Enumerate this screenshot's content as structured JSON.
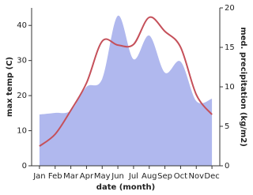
{
  "chart_data": {
    "type": "area-line",
    "x_label": "date (month)",
    "y_label": "max temp (C)",
    "y2_label": "med. precipitation (kg/m2)",
    "categories": [
      "Jan",
      "Feb",
      "Mar",
      "Apr",
      "May",
      "Jun",
      "Jul",
      "Aug",
      "Sep",
      "Oct",
      "Nov",
      "Dec"
    ],
    "series": [
      {
        "name": "med. precipitation",
        "type": "area",
        "axis": "y2",
        "color": "#b0b8ee",
        "values": [
          6.5,
          6.7,
          7,
          10,
          11,
          19,
          13.5,
          16.5,
          11.8,
          13.2,
          8.2,
          8.5
        ]
      },
      {
        "name": "max temp",
        "type": "line",
        "color": "#c5505a",
        "values": [
          5.6,
          9,
          15.8,
          23.6,
          35.5,
          34.4,
          34.6,
          42.3,
          38.3,
          33.8,
          20.3,
          14.6
        ]
      }
    ],
    "ylim": [
      0,
      45
    ],
    "yticks": [
      0,
      10,
      20,
      30,
      40
    ],
    "y2lim": [
      0,
      20
    ],
    "y2ticks": [
      0,
      5,
      10,
      15,
      20
    ]
  }
}
